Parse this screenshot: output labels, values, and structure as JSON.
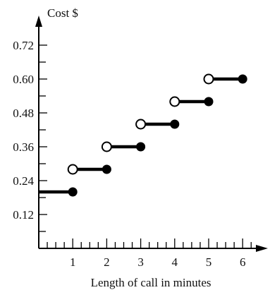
{
  "chart_data": {
    "type": "step",
    "title": "",
    "ylabel": "Cost $",
    "xlabel": "Length of call in minutes",
    "xlim": [
      0,
      6.6
    ],
    "ylim": [
      0,
      0.8
    ],
    "x_ticks": [
      1,
      2,
      3,
      4,
      5,
      6
    ],
    "x_minor_step": 0.25,
    "y_ticks": [
      0.12,
      0.24,
      0.36,
      0.48,
      0.6,
      0.72
    ],
    "y_tick_labels": [
      "0.12",
      "0.24",
      "0.36",
      "0.48",
      "0.60",
      "0.72"
    ],
    "y_minor_step": 0.06,
    "grid": false,
    "segments": [
      {
        "x_start": 0,
        "x_end": 1,
        "y": 0.2,
        "start_open": null,
        "end_closed": true
      },
      {
        "x_start": 1,
        "x_end": 2,
        "y": 0.28,
        "start_open": true,
        "end_closed": true
      },
      {
        "x_start": 2,
        "x_end": 3,
        "y": 0.36,
        "start_open": true,
        "end_closed": true
      },
      {
        "x_start": 3,
        "x_end": 4,
        "y": 0.44,
        "start_open": true,
        "end_closed": true
      },
      {
        "x_start": 4,
        "x_end": 5,
        "y": 0.52,
        "start_open": true,
        "end_closed": true
      },
      {
        "x_start": 5,
        "x_end": 6,
        "y": 0.6,
        "start_open": true,
        "end_closed": true
      }
    ]
  }
}
